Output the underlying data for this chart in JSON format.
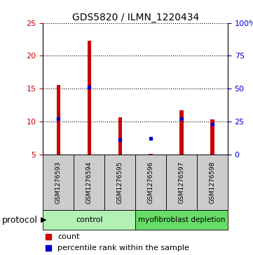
{
  "title": "GDS5820 / ILMN_1220434",
  "samples": [
    "GSM1276593",
    "GSM1276594",
    "GSM1276595",
    "GSM1276596",
    "GSM1276597",
    "GSM1276598"
  ],
  "red_values": [
    15.5,
    22.3,
    10.6,
    5.1,
    11.7,
    10.3
  ],
  "blue_percentile": [
    27,
    51,
    11,
    12,
    27,
    23
  ],
  "y_min": 5,
  "y_max": 25,
  "y_ticks_left": [
    5,
    10,
    15,
    20,
    25
  ],
  "y_ticks_right_labels": [
    "0",
    "25",
    "50",
    "75",
    "100%"
  ],
  "groups": [
    {
      "label": "control",
      "start": 0,
      "end": 3,
      "color": "#b3f0b3"
    },
    {
      "label": "myofibroblast depletion",
      "start": 3,
      "end": 6,
      "color": "#66dd66"
    }
  ],
  "protocol_label": "protocol",
  "legend_count_label": "count",
  "legend_percentile_label": "percentile rank within the sample",
  "red_color": "#cc0000",
  "blue_color": "#0000cc",
  "bar_width": 0.12,
  "sample_box_color": "#cccccc",
  "background_color": "#ffffff",
  "grid_color": "#000000"
}
